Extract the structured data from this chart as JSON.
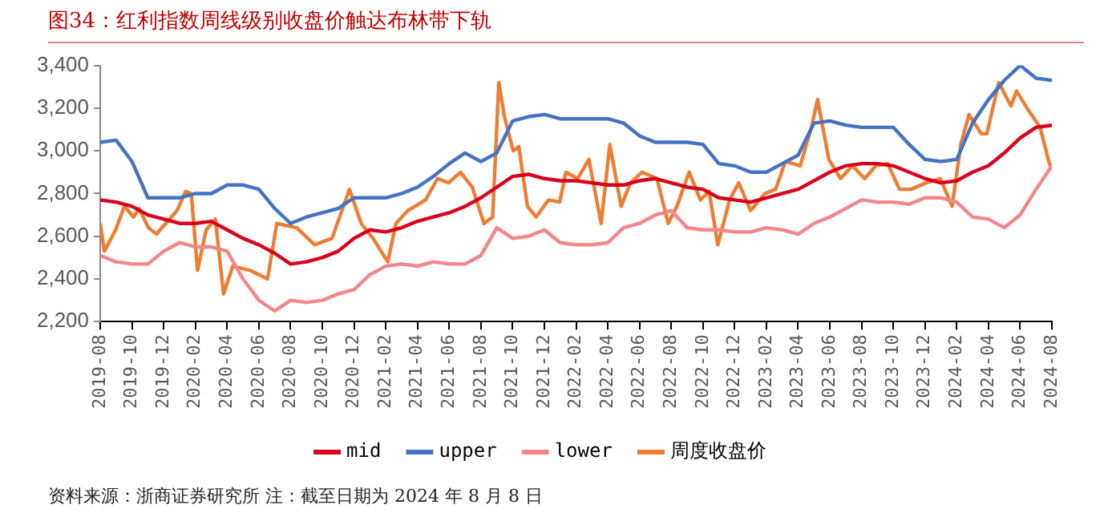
{
  "chart_data": {
    "type": "line",
    "title": "图34：红利指数周线级别收盘价触达布林带下轨",
    "x": [
      "2019-08",
      "2019-09",
      "2019-10",
      "2019-11",
      "2019-12",
      "2020-01",
      "2020-02",
      "2020-03",
      "2020-04",
      "2020-05",
      "2020-06",
      "2020-07",
      "2020-08",
      "2020-09",
      "2020-10",
      "2020-11",
      "2020-12",
      "2021-01",
      "2021-02",
      "2021-03",
      "2021-04",
      "2021-05",
      "2021-06",
      "2021-07",
      "2021-08",
      "2021-09",
      "2021-10",
      "2021-11",
      "2021-12",
      "2022-01",
      "2022-02",
      "2022-03",
      "2022-04",
      "2022-05",
      "2022-06",
      "2022-07",
      "2022-08",
      "2022-09",
      "2022-10",
      "2022-11",
      "2022-12",
      "2023-01",
      "2023-02",
      "2023-03",
      "2023-04",
      "2023-05",
      "2023-06",
      "2023-07",
      "2023-08",
      "2023-09",
      "2023-10",
      "2023-11",
      "2023-12",
      "2024-01",
      "2024-02",
      "2024-03",
      "2024-04",
      "2024-05",
      "2024-06",
      "2024-07",
      "2024-08"
    ],
    "series": [
      {
        "name": "mid",
        "color": "#d9001b",
        "values": [
          2770,
          2760,
          2740,
          2700,
          2680,
          2660,
          2660,
          2670,
          2630,
          2590,
          2560,
          2520,
          2470,
          2480,
          2500,
          2530,
          2590,
          2630,
          2620,
          2640,
          2670,
          2690,
          2710,
          2740,
          2780,
          2830,
          2880,
          2890,
          2870,
          2860,
          2860,
          2850,
          2840,
          2840,
          2860,
          2870,
          2850,
          2830,
          2820,
          2780,
          2770,
          2760,
          2780,
          2800,
          2820,
          2860,
          2900,
          2930,
          2940,
          2940,
          2930,
          2900,
          2870,
          2850,
          2860,
          2900,
          2930,
          2990,
          3060,
          3110,
          3120
        ]
      },
      {
        "name": "upper",
        "color": "#4472c4",
        "values": [
          3040,
          3050,
          2950,
          2780,
          2780,
          2780,
          2800,
          2800,
          2840,
          2840,
          2820,
          2730,
          2660,
          2690,
          2710,
          2730,
          2780,
          2780,
          2780,
          2800,
          2830,
          2880,
          2940,
          2990,
          2950,
          2990,
          3140,
          3160,
          3170,
          3150,
          3150,
          3150,
          3150,
          3130,
          3070,
          3040,
          3040,
          3040,
          3030,
          2940,
          2930,
          2900,
          2900,
          2940,
          2980,
          3130,
          3140,
          3120,
          3110,
          3110,
          3110,
          3030,
          2960,
          2950,
          2960,
          3130,
          3240,
          3330,
          3400,
          3340,
          3330
        ]
      },
      {
        "name": "lower",
        "color": "#f4868a",
        "values": [
          2510,
          2480,
          2470,
          2470,
          2530,
          2570,
          2550,
          2550,
          2530,
          2400,
          2300,
          2250,
          2300,
          2290,
          2300,
          2330,
          2350,
          2420,
          2460,
          2470,
          2460,
          2480,
          2470,
          2470,
          2510,
          2640,
          2590,
          2600,
          2630,
          2570,
          2560,
          2560,
          2570,
          2640,
          2660,
          2700,
          2720,
          2640,
          2630,
          2630,
          2620,
          2620,
          2640,
          2630,
          2610,
          2660,
          2690,
          2730,
          2770,
          2760,
          2760,
          2750,
          2780,
          2780,
          2760,
          2690,
          2680,
          2640,
          2700,
          2820,
          2930
        ]
      },
      {
        "name": "周度收盘价",
        "color": "#ed7d31",
        "x": [
          "2019-08-01",
          "2019-08-09",
          "2019-08-31",
          "2019-09-17",
          "2019-10-04",
          "2019-10-15",
          "2019-11-02",
          "2019-11-18",
          "2019-12-05",
          "2019-12-27",
          "2020-01-13",
          "2020-01-24",
          "2020-02-05",
          "2020-02-22",
          "2020-03-09",
          "2020-03-25",
          "2020-04-12",
          "2020-05-15",
          "2020-06-18",
          "2020-07-05",
          "2020-08-13",
          "2020-09-17",
          "2020-10-20",
          "2020-11-23",
          "2020-12-15",
          "2021-01-07",
          "2021-02-05",
          "2021-02-21",
          "2021-03-13",
          "2021-04-17",
          "2021-05-09",
          "2021-05-31",
          "2021-06-23",
          "2021-07-15",
          "2021-08-07",
          "2021-08-24",
          "2021-09-05",
          "2021-09-16",
          "2021-10-02",
          "2021-10-13",
          "2021-10-30",
          "2021-11-16",
          "2021-12-09",
          "2021-12-31",
          "2022-01-12",
          "2022-02-04",
          "2022-02-26",
          "2022-03-19",
          "2022-04-05",
          "2022-04-27",
          "2022-05-14",
          "2022-06-06",
          "2022-07-04",
          "2022-07-26",
          "2022-08-12",
          "2022-09-05",
          "2022-09-27",
          "2022-10-13",
          "2022-10-30",
          "2022-11-22",
          "2022-12-09",
          "2023-01-01",
          "2023-01-29",
          "2023-02-19",
          "2023-03-07",
          "2023-04-05",
          "2023-04-27",
          "2023-05-08",
          "2023-05-30",
          "2023-06-22",
          "2023-07-14",
          "2023-08-07",
          "2023-08-29",
          "2023-09-21",
          "2023-10-13",
          "2023-11-05",
          "2023-12-03",
          "2023-12-31",
          "2024-01-23",
          "2024-02-09",
          "2024-02-25",
          "2024-03-18",
          "2024-03-29",
          "2024-04-21",
          "2024-05-14",
          "2024-05-25",
          "2024-06-17",
          "2024-07-09",
          "2024-07-26",
          "2024-08-01"
        ],
        "values": [
          2660,
          2530,
          2630,
          2740,
          2690,
          2730,
          2640,
          2610,
          2660,
          2720,
          2810,
          2800,
          2440,
          2630,
          2680,
          2330,
          2460,
          2440,
          2400,
          2660,
          2640,
          2560,
          2590,
          2820,
          2660,
          2590,
          2480,
          2660,
          2720,
          2770,
          2870,
          2850,
          2900,
          2830,
          2660,
          2690,
          3320,
          3160,
          3000,
          3020,
          2740,
          2690,
          2770,
          2760,
          2900,
          2870,
          2960,
          2660,
          3030,
          2740,
          2850,
          2900,
          2870,
          2660,
          2740,
          2900,
          2770,
          2810,
          2560,
          2770,
          2850,
          2720,
          2800,
          2820,
          2950,
          2930,
          3110,
          3240,
          2960,
          2870,
          2930,
          2870,
          2930,
          2940,
          2820,
          2820,
          2850,
          2870,
          2740,
          3030,
          3170,
          3080,
          3080,
          3320,
          3210,
          3280,
          3190,
          3110,
          2950,
          2910
        ]
      }
    ],
    "xlim": [
      "2019-08",
      "2024-08"
    ],
    "xticks": [
      "2019-08",
      "2019-10",
      "2019-12",
      "2020-02",
      "2020-04",
      "2020-06",
      "2020-08",
      "2020-10",
      "2020-12",
      "2021-02",
      "2021-04",
      "2021-06",
      "2021-08",
      "2021-10",
      "2021-12",
      "2022-02",
      "2022-04",
      "2022-06",
      "2022-08",
      "2022-10",
      "2022-12",
      "2023-02",
      "2023-04",
      "2023-06",
      "2023-08",
      "2023-10",
      "2023-12",
      "2024-02",
      "2024-04",
      "2024-06",
      "2024-08"
    ],
    "ylim": [
      2200,
      3400
    ],
    "yticks": [
      {
        "value": 2200,
        "label": "2,200"
      },
      {
        "value": 2400,
        "label": "2,400"
      },
      {
        "value": 2600,
        "label": "2,600"
      },
      {
        "value": 2800,
        "label": "2,800"
      },
      {
        "value": 3000,
        "label": "3,000"
      },
      {
        "value": 3200,
        "label": "3,200"
      },
      {
        "value": 3400,
        "label": "3,400"
      }
    ],
    "grid": false,
    "legend": "bottom",
    "marker": "none",
    "line_style": "solid",
    "annotations": [
      "资料来源：浙商证券研究所 注：截至日期为 2024 年 8 月 8 日"
    ]
  }
}
